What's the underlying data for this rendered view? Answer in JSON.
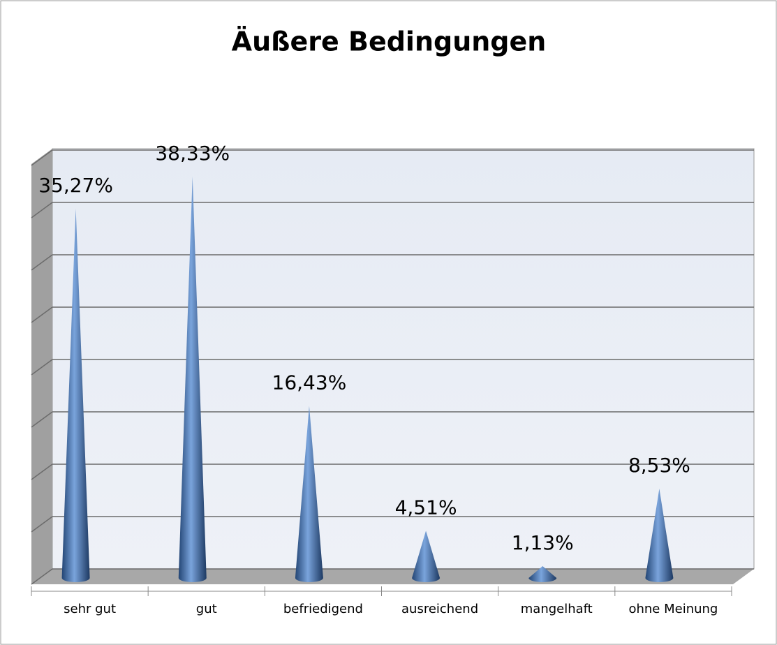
{
  "chart_data": {
    "type": "cone",
    "title": "Äußere Bedingungen",
    "categories": [
      "sehr gut",
      "gut",
      "befriedigend",
      "ausreichend",
      "mangelhaft",
      "ohne Meinung"
    ],
    "values": [
      35.27,
      38.33,
      16.43,
      4.51,
      1.13,
      8.53
    ],
    "value_labels": [
      "35,27%",
      "38,33%",
      "16,43%",
      "4,51%",
      "1,13%",
      "8,53%"
    ],
    "color": "#4a76b8",
    "ylim": [
      0,
      40
    ],
    "yticks": [
      0,
      5,
      10,
      15,
      20,
      25,
      30,
      35,
      40
    ],
    "grid": true
  }
}
